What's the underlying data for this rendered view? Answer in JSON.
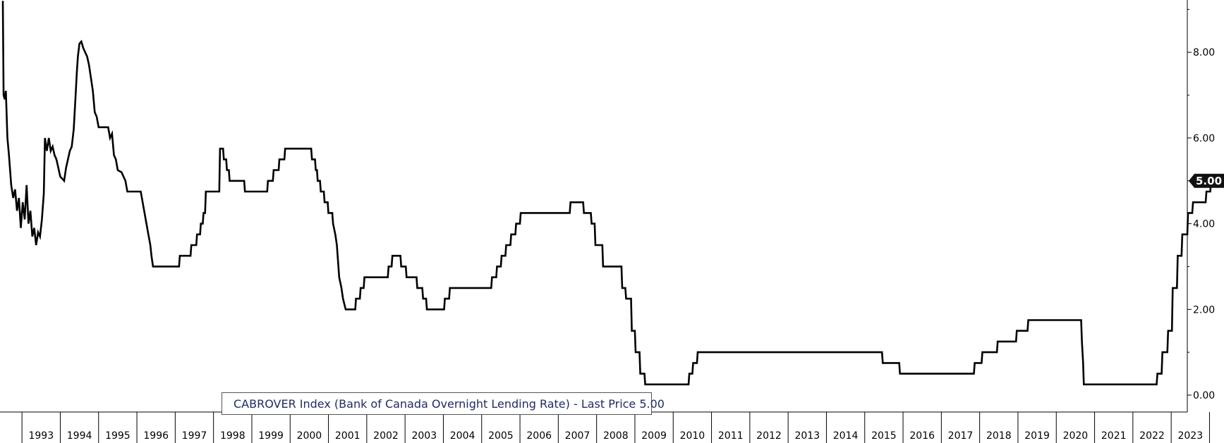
{
  "chart_data": {
    "type": "line",
    "title": "",
    "xlabel": "",
    "ylabel": "",
    "ylim": [
      -0.15,
      9.3
    ],
    "y_ticks": [
      "0.00",
      "2.00",
      "4.00",
      "6.00",
      "8.00"
    ],
    "y_tick_values": [
      0,
      2,
      4,
      6,
      8
    ],
    "x_tick_labels": [
      "1993",
      "1994",
      "1995",
      "1996",
      "1997",
      "1998",
      "1999",
      "2000",
      "2001",
      "2002",
      "2003",
      "2004",
      "2005",
      "2006",
      "2007",
      "2008",
      "2009",
      "2010",
      "2011",
      "2012",
      "2013",
      "2014",
      "2015",
      "2016",
      "2017",
      "2018",
      "2019",
      "2020",
      "2021",
      "2022",
      "2023"
    ],
    "grid": false,
    "legend_position": "bottom-left",
    "last_value_label": "5.00",
    "series": [
      {
        "name": "CABROVER Index (Bank of Canada Overnight Lending Rate) - Last Price 5.00",
        "color": "#000000",
        "points": [
          [
            1992.0,
            9.2
          ],
          [
            1992.02,
            7.0
          ],
          [
            1992.05,
            6.9
          ],
          [
            1992.08,
            7.1
          ],
          [
            1992.12,
            6.0
          ],
          [
            1992.16,
            5.6
          ],
          [
            1992.22,
            4.9
          ],
          [
            1992.27,
            4.6
          ],
          [
            1992.32,
            4.8
          ],
          [
            1992.37,
            4.3
          ],
          [
            1992.42,
            4.6
          ],
          [
            1992.47,
            3.9
          ],
          [
            1992.52,
            4.5
          ],
          [
            1992.57,
            4.1
          ],
          [
            1992.62,
            4.9
          ],
          [
            1992.67,
            4.0
          ],
          [
            1992.72,
            4.3
          ],
          [
            1992.77,
            3.7
          ],
          [
            1992.82,
            3.9
          ],
          [
            1992.87,
            3.5
          ],
          [
            1992.92,
            3.8
          ],
          [
            1992.97,
            3.7
          ],
          [
            1993.02,
            4.1
          ],
          [
            1993.07,
            4.7
          ],
          [
            1993.1,
            6.0
          ],
          [
            1993.15,
            5.7
          ],
          [
            1993.2,
            6.0
          ],
          [
            1993.25,
            5.7
          ],
          [
            1993.3,
            5.8
          ],
          [
            1993.35,
            5.6
          ],
          [
            1993.4,
            5.5
          ],
          [
            1993.45,
            5.3
          ],
          [
            1993.5,
            5.1
          ],
          [
            1993.55,
            5.05
          ],
          [
            1993.6,
            5.0
          ],
          [
            1993.65,
            5.3
          ],
          [
            1993.7,
            5.5
          ],
          [
            1993.75,
            5.7
          ],
          [
            1993.8,
            5.8
          ],
          [
            1993.85,
            6.2
          ],
          [
            1993.9,
            7.0
          ],
          [
            1993.93,
            7.5
          ],
          [
            1993.96,
            7.9
          ],
          [
            1994.0,
            8.2
          ],
          [
            1994.05,
            8.25
          ],
          [
            1994.1,
            8.1
          ],
          [
            1994.15,
            8.0
          ],
          [
            1994.2,
            7.9
          ],
          [
            1994.25,
            7.7
          ],
          [
            1994.3,
            7.4
          ],
          [
            1994.35,
            7.1
          ],
          [
            1994.4,
            6.6
          ],
          [
            1994.45,
            6.5
          ],
          [
            1994.5,
            6.25
          ],
          [
            1994.75,
            6.25
          ],
          [
            1994.8,
            6.0
          ],
          [
            1994.85,
            6.1
          ],
          [
            1994.9,
            5.6
          ],
          [
            1994.95,
            5.5
          ],
          [
            1995.0,
            5.25
          ],
          [
            1995.1,
            5.2
          ],
          [
            1995.2,
            5.0
          ],
          [
            1995.25,
            4.75
          ],
          [
            1995.6,
            4.75
          ],
          [
            1995.65,
            4.5
          ],
          [
            1995.7,
            4.25
          ],
          [
            1995.75,
            4.0
          ],
          [
            1995.8,
            3.75
          ],
          [
            1995.85,
            3.5
          ],
          [
            1995.88,
            3.25
          ],
          [
            1995.92,
            3.0
          ],
          [
            1996.6,
            3.0
          ],
          [
            1996.62,
            3.25
          ],
          [
            1996.9,
            3.25
          ],
          [
            1996.92,
            3.5
          ],
          [
            1997.05,
            3.5
          ],
          [
            1997.07,
            3.75
          ],
          [
            1997.15,
            3.75
          ],
          [
            1997.17,
            4.0
          ],
          [
            1997.22,
            4.0
          ],
          [
            1997.24,
            4.25
          ],
          [
            1997.28,
            4.25
          ],
          [
            1997.3,
            4.75
          ],
          [
            1997.65,
            4.75
          ],
          [
            1997.67,
            5.75
          ],
          [
            1997.75,
            5.75
          ],
          [
            1997.77,
            5.5
          ],
          [
            1997.83,
            5.5
          ],
          [
            1997.85,
            5.25
          ],
          [
            1997.9,
            5.25
          ],
          [
            1997.92,
            5.0
          ],
          [
            1998.3,
            5.0
          ],
          [
            1998.32,
            4.75
          ],
          [
            1998.9,
            4.75
          ],
          [
            1998.92,
            5.0
          ],
          [
            1999.05,
            5.0
          ],
          [
            1999.07,
            5.25
          ],
          [
            1999.2,
            5.25
          ],
          [
            1999.22,
            5.5
          ],
          [
            1999.35,
            5.5
          ],
          [
            1999.37,
            5.75
          ],
          [
            2000.05,
            5.75
          ],
          [
            2000.07,
            5.5
          ],
          [
            2000.15,
            5.5
          ],
          [
            2000.17,
            5.25
          ],
          [
            2000.2,
            5.25
          ],
          [
            2000.22,
            5.0
          ],
          [
            2000.28,
            5.0
          ],
          [
            2000.3,
            4.75
          ],
          [
            2000.38,
            4.75
          ],
          [
            2000.4,
            4.5
          ],
          [
            2000.48,
            4.5
          ],
          [
            2000.5,
            4.25
          ],
          [
            2000.6,
            4.25
          ],
          [
            2000.62,
            4.0
          ],
          [
            2000.68,
            3.75
          ],
          [
            2000.72,
            3.5
          ],
          [
            2000.78,
            2.75
          ],
          [
            2000.84,
            2.5
          ],
          [
            2000.88,
            2.25
          ],
          [
            2000.95,
            2.0
          ],
          [
            2001.2,
            2.0
          ],
          [
            2001.22,
            2.25
          ],
          [
            2001.32,
            2.25
          ],
          [
            2001.34,
            2.5
          ],
          [
            2001.42,
            2.5
          ],
          [
            2001.44,
            2.75
          ],
          [
            2002.05,
            2.75
          ],
          [
            2002.07,
            3.0
          ],
          [
            2002.15,
            3.0
          ],
          [
            2002.17,
            3.25
          ],
          [
            2002.38,
            3.25
          ],
          [
            2002.4,
            3.0
          ],
          [
            2002.52,
            3.0
          ],
          [
            2002.54,
            2.75
          ],
          [
            2002.8,
            2.75
          ],
          [
            2002.82,
            2.5
          ],
          [
            2002.95,
            2.5
          ],
          [
            2002.97,
            2.25
          ],
          [
            2003.05,
            2.25
          ],
          [
            2003.07,
            2.0
          ],
          [
            2003.52,
            2.0
          ],
          [
            2003.54,
            2.25
          ],
          [
            2003.65,
            2.25
          ],
          [
            2003.67,
            2.5
          ],
          [
            2004.75,
            2.5
          ],
          [
            2004.77,
            2.75
          ],
          [
            2004.88,
            2.75
          ],
          [
            2004.9,
            3.0
          ],
          [
            2005.0,
            3.0
          ],
          [
            2005.02,
            3.25
          ],
          [
            2005.12,
            3.25
          ],
          [
            2005.14,
            3.5
          ],
          [
            2005.25,
            3.5
          ],
          [
            2005.27,
            3.75
          ],
          [
            2005.38,
            3.75
          ],
          [
            2005.4,
            4.0
          ],
          [
            2005.5,
            4.0
          ],
          [
            2005.52,
            4.25
          ],
          [
            2006.8,
            4.25
          ],
          [
            2006.82,
            4.5
          ],
          [
            2007.15,
            4.5
          ],
          [
            2007.17,
            4.25
          ],
          [
            2007.35,
            4.25
          ],
          [
            2007.37,
            4.0
          ],
          [
            2007.45,
            4.0
          ],
          [
            2007.47,
            3.5
          ],
          [
            2007.65,
            3.5
          ],
          [
            2007.67,
            3.0
          ],
          [
            2008.15,
            3.0
          ],
          [
            2008.17,
            2.5
          ],
          [
            2008.25,
            2.5
          ],
          [
            2008.27,
            2.25
          ],
          [
            2008.4,
            2.25
          ],
          [
            2008.42,
            1.5
          ],
          [
            2008.5,
            1.5
          ],
          [
            2008.52,
            1.0
          ],
          [
            2008.62,
            1.0
          ],
          [
            2008.64,
            0.5
          ],
          [
            2008.75,
            0.5
          ],
          [
            2008.77,
            0.25
          ],
          [
            2009.9,
            0.25
          ],
          [
            2009.92,
            0.5
          ],
          [
            2010.0,
            0.5
          ],
          [
            2010.02,
            0.75
          ],
          [
            2010.12,
            0.75
          ],
          [
            2010.14,
            1.0
          ],
          [
            2014.95,
            1.0
          ],
          [
            2014.97,
            0.75
          ],
          [
            2015.4,
            0.75
          ],
          [
            2015.42,
            0.5
          ],
          [
            2017.35,
            0.5
          ],
          [
            2017.37,
            0.75
          ],
          [
            2017.55,
            0.75
          ],
          [
            2017.57,
            1.0
          ],
          [
            2017.95,
            1.0
          ],
          [
            2017.97,
            1.25
          ],
          [
            2018.45,
            1.25
          ],
          [
            2018.47,
            1.5
          ],
          [
            2018.75,
            1.5
          ],
          [
            2018.77,
            1.75
          ],
          [
            2020.15,
            1.75
          ],
          [
            2020.17,
            1.25
          ],
          [
            2020.2,
            0.75
          ],
          [
            2020.22,
            0.25
          ],
          [
            2022.12,
            0.25
          ],
          [
            2022.14,
            0.5
          ],
          [
            2022.25,
            0.5
          ],
          [
            2022.27,
            1.0
          ],
          [
            2022.4,
            1.0
          ],
          [
            2022.42,
            1.5
          ],
          [
            2022.52,
            1.5
          ],
          [
            2022.54,
            2.5
          ],
          [
            2022.65,
            2.5
          ],
          [
            2022.67,
            3.25
          ],
          [
            2022.77,
            3.25
          ],
          [
            2022.79,
            3.75
          ],
          [
            2022.92,
            3.75
          ],
          [
            2022.94,
            4.25
          ],
          [
            2023.05,
            4.25
          ],
          [
            2023.07,
            4.5
          ],
          [
            2023.4,
            4.5
          ],
          [
            2023.42,
            4.75
          ],
          [
            2023.52,
            4.75
          ],
          [
            2023.54,
            5.0
          ],
          [
            2023.8,
            5.0
          ]
        ]
      }
    ]
  },
  "legend": {
    "label": "CABROVER Index (Bank of Canada Overnight Lending Rate) - Last Price 5.00"
  }
}
